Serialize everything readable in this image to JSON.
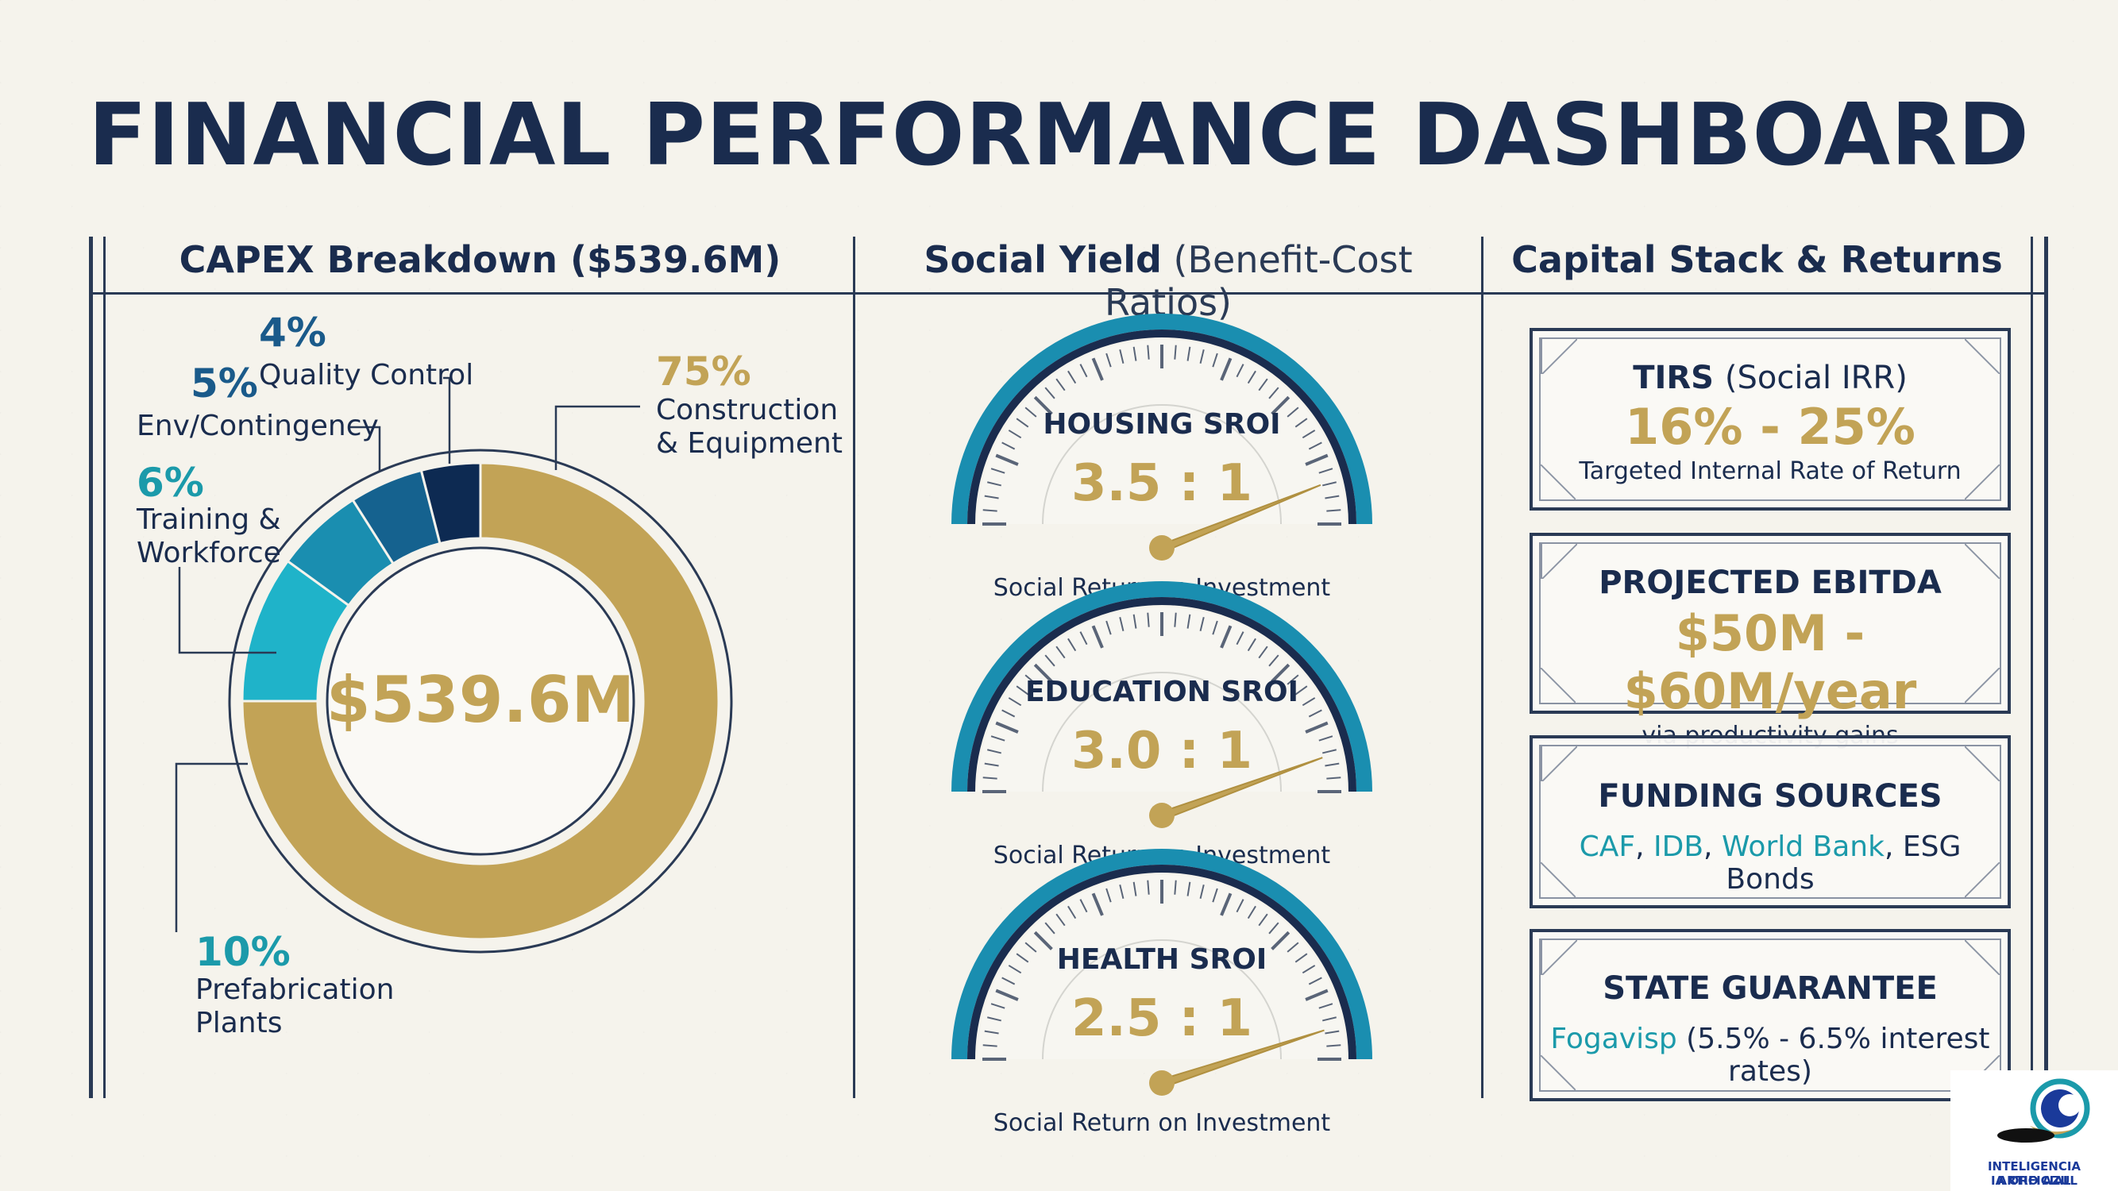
{
  "title": "FINANCIAL PERFORMANCE DASHBOARD",
  "columns": {
    "capex_title": "CAPEX Breakdown ($539.6M)",
    "social_title_bold": "Social Yield",
    "social_title_light": "(Benefit-Cost Ratios)",
    "capital_title": "Capital Stack & Returns"
  },
  "chart_data": [
    {
      "type": "pie",
      "title": "CAPEX Breakdown ($539.6M)",
      "center_label": "$539.6M",
      "slices": [
        {
          "label_lines": [
            "Construction",
            "& Equipment"
          ],
          "value": 75,
          "pct": "75%",
          "color": "#c2a356",
          "pct_color": "#c2a356"
        },
        {
          "label_lines": [
            "Prefabrication",
            "Plants"
          ],
          "value": 10,
          "pct": "10%",
          "color": "#1fb3c9",
          "pct_color": "#1b9aaa"
        },
        {
          "label_lines": [
            "Training &",
            "Workforce"
          ],
          "value": 6,
          "pct": "6%",
          "color": "#1a8eb0",
          "pct_color": "#1b9aaa"
        },
        {
          "label_lines": [
            "Env/Contingency"
          ],
          "value": 5,
          "pct": "5%",
          "color": "#15628f",
          "pct_color": "#1a5a8a"
        },
        {
          "label_lines": [
            "Quality Control"
          ],
          "value": 4,
          "pct": "4%",
          "color": "#0d2a52",
          "pct_color": "#1a5a8a"
        }
      ]
    }
  ],
  "gauges": [
    {
      "name": "HOUSING SROI",
      "value_label": "3.5 : 1",
      "value": 3.5,
      "caption": "Social Return on Investment"
    },
    {
      "name": "EDUCATION SROI",
      "value_label": "3.0 : 1",
      "value": 3.0,
      "caption": "Social Return on Investment"
    },
    {
      "name": "HEALTH SROI",
      "value_label": "2.5 : 1",
      "value": 2.5,
      "caption": "Social Return on Investment"
    }
  ],
  "cards": {
    "tirs": {
      "title_bold": "TIRS",
      "title_light": "(Social IRR)",
      "value": "16% - 25%",
      "sub": "Targeted Internal Rate of Return"
    },
    "ebitda": {
      "title": "PROJECTED EBITDA",
      "value": "$50M - $60M/year",
      "sub": "via productivity gains"
    },
    "funding": {
      "title": "FUNDING SOURCES",
      "caf": "CAF",
      "idb": "IDB",
      "wb": "World Bank",
      "esg": "ESG Bonds",
      "sep": ", "
    },
    "state": {
      "title": "STATE GUARANTEE",
      "fogavisp": "Fogavisp",
      "rates": "(5.5% - 6.5% interest rates)"
    }
  },
  "logo": {
    "line1": "INTELIGENCIA ARTIFICIAL",
    "line2": "IA ORO AZUL"
  },
  "colors": {
    "navy": "#1a2c4e",
    "gold": "#c2a356",
    "teal": "#1b9aaa"
  }
}
